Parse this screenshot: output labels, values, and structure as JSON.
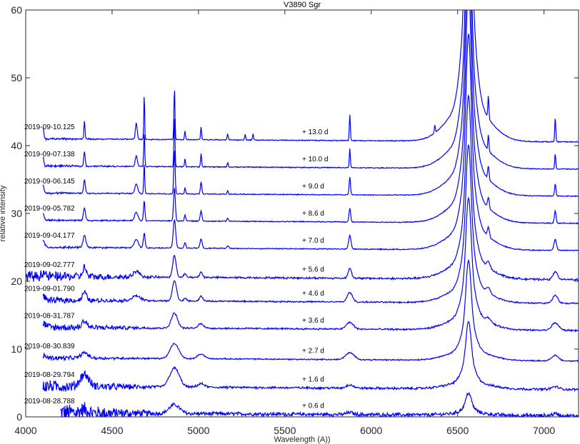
{
  "chart_data": {
    "type": "line",
    "title": "V3890 Sgr",
    "xlabel": "Wavelength (A))",
    "ylabel": "relative intensity",
    "xlim": [
      4000,
      7200
    ],
    "ylim": [
      0,
      60
    ],
    "xticks": [
      4000,
      4500,
      5000,
      5500,
      6000,
      6500,
      7000
    ],
    "yticks": [
      0,
      10,
      20,
      30,
      40,
      50,
      60
    ],
    "grid": false,
    "line_color": "#0000ff",
    "series": [
      {
        "name": "2019-08-28.788",
        "phase": "+ 0.6 d",
        "offset": 0.4,
        "x_start": 4200,
        "halpha_peak": 3.5,
        "noise": 1.2,
        "lines": [
          [
            4340,
            0.5,
            25
          ],
          [
            4861,
            1.3,
            30
          ],
          [
            5876,
            0.3,
            20
          ],
          [
            7065,
            0.3,
            20
          ]
        ]
      },
      {
        "name": "2019-08-29.794",
        "phase": "+ 1.6 d",
        "offset": 4.3,
        "x_start": 4100,
        "halpha_peak": 10.5,
        "noise": 0.7,
        "lines": [
          [
            4340,
            1.8,
            25
          ],
          [
            4861,
            2.8,
            28
          ],
          [
            5015,
            0.5,
            20
          ],
          [
            5876,
            0.5,
            20
          ],
          [
            7065,
            0.4,
            20
          ]
        ]
      },
      {
        "name": "2019-08-30.839",
        "phase": "+ 2.7 d",
        "offset": 8.5,
        "x_start": 4100,
        "halpha_peak": 15.5,
        "noise": 0.25,
        "lines": [
          [
            4101,
            0.3,
            15
          ],
          [
            4340,
            0.8,
            20
          ],
          [
            4861,
            2.2,
            25
          ],
          [
            5015,
            0.7,
            20
          ],
          [
            5876,
            1.0,
            25
          ],
          [
            7065,
            0.8,
            20
          ]
        ]
      },
      {
        "name": "2019-08-31.787",
        "phase": "+ 3.6 d",
        "offset": 13.0,
        "x_start": 4100,
        "halpha_peak": 20.5,
        "noise": 0.45,
        "lines": [
          [
            4101,
            0.5,
            15
          ],
          [
            4340,
            1.0,
            15
          ],
          [
            4861,
            2.2,
            18
          ],
          [
            5015,
            0.7,
            15
          ],
          [
            5876,
            1.0,
            20
          ],
          [
            6678,
            0.6,
            15
          ],
          [
            7065,
            1.1,
            20
          ]
        ]
      },
      {
        "name": "2019-09-01.790",
        "phase": "+ 4.6 d",
        "offset": 17.0,
        "x_start": 4100,
        "halpha_peak": 24.5,
        "noise": 0.35,
        "lines": [
          [
            4101,
            0.6,
            12
          ],
          [
            4340,
            1.2,
            12
          ],
          [
            4640,
            0.7,
            25
          ],
          [
            4861,
            3.0,
            12
          ],
          [
            4922,
            0.4,
            8
          ],
          [
            5015,
            0.7,
            10
          ],
          [
            5876,
            1.4,
            15
          ],
          [
            6678,
            0.8,
            12
          ],
          [
            7065,
            1.2,
            15
          ]
        ]
      },
      {
        "name": "2019-09-02.777",
        "phase": "+ 5.6 d",
        "offset": 20.5,
        "x_start": 4000,
        "halpha_peak": 28.5,
        "noise": 0.55,
        "lines": [
          [
            4101,
            0.6,
            10
          ],
          [
            4340,
            1.4,
            10
          ],
          [
            4640,
            0.8,
            20
          ],
          [
            4861,
            3.2,
            10
          ],
          [
            4922,
            0.5,
            7
          ],
          [
            5015,
            0.8,
            8
          ],
          [
            5876,
            1.5,
            10
          ],
          [
            6678,
            0.9,
            10
          ],
          [
            7065,
            1.2,
            12
          ]
        ]
      },
      {
        "name": "2019-09-04.177",
        "phase": "+ 7.0 d",
        "offset": 24.8,
        "x_start": 4100,
        "halpha_peak": 33.5,
        "noise": 0.12,
        "lines": [
          [
            4101,
            1.0,
            8
          ],
          [
            4340,
            1.8,
            8
          ],
          [
            4640,
            1.2,
            12
          ],
          [
            4686,
            2.2,
            5
          ],
          [
            4861,
            4.2,
            7
          ],
          [
            4922,
            0.8,
            5
          ],
          [
            5015,
            1.4,
            6
          ],
          [
            5169,
            0.4,
            5
          ],
          [
            5876,
            2.0,
            7
          ],
          [
            6678,
            1.4,
            6
          ],
          [
            7065,
            1.6,
            7
          ]
        ]
      },
      {
        "name": "2019-09-05.782",
        "phase": "+ 8.6 d",
        "offset": 28.8,
        "x_start": 4100,
        "halpha_peak": 37.0,
        "noise": 0.1,
        "lines": [
          [
            4101,
            1.0,
            6
          ],
          [
            4340,
            1.8,
            6
          ],
          [
            4640,
            1.2,
            10
          ],
          [
            4686,
            3.0,
            4
          ],
          [
            4861,
            5.0,
            5
          ],
          [
            4922,
            0.9,
            4
          ],
          [
            5015,
            1.5,
            5
          ],
          [
            5169,
            0.5,
            4
          ],
          [
            5876,
            2.0,
            5
          ],
          [
            6678,
            1.6,
            5
          ],
          [
            7065,
            1.8,
            5
          ]
        ]
      },
      {
        "name": "2019-09-06.145",
        "phase": "+ 9.0 d",
        "offset": 32.8,
        "x_start": 4100,
        "halpha_peak": 41.0,
        "noise": 0.1,
        "lines": [
          [
            4101,
            1.2,
            5
          ],
          [
            4340,
            2.0,
            5
          ],
          [
            4640,
            1.4,
            8
          ],
          [
            4686,
            4.5,
            3
          ],
          [
            4861,
            6.5,
            4
          ],
          [
            4922,
            1.0,
            3
          ],
          [
            5015,
            1.8,
            4
          ],
          [
            5169,
            0.6,
            3
          ],
          [
            5876,
            2.6,
            4
          ],
          [
            6678,
            2.0,
            4
          ],
          [
            7065,
            1.8,
            4
          ]
        ]
      },
      {
        "name": "2019-09-07.138",
        "phase": "+ 10.0 d",
        "offset": 36.8,
        "x_start": 4100,
        "halpha_peak": 45.0,
        "noise": 0.1,
        "lines": [
          [
            4101,
            1.3,
            4
          ],
          [
            4340,
            2.2,
            4
          ],
          [
            4640,
            1.6,
            6
          ],
          [
            4686,
            5.0,
            3
          ],
          [
            4861,
            7.5,
            3
          ],
          [
            4922,
            1.2,
            3
          ],
          [
            5015,
            2.0,
            3
          ],
          [
            5169,
            0.7,
            3
          ],
          [
            5876,
            2.8,
            3
          ],
          [
            6678,
            2.4,
            3
          ],
          [
            7065,
            2.2,
            3
          ]
        ]
      },
      {
        "name": "2019-09-10.125",
        "phase": "+ 13.0 d",
        "offset": 40.8,
        "x_start": 4100,
        "halpha_peak": 58.0,
        "noise": 0.1,
        "lines": [
          [
            4101,
            1.6,
            4
          ],
          [
            4340,
            2.7,
            3
          ],
          [
            4640,
            2.5,
            5
          ],
          [
            4686,
            6.8,
            2.5
          ],
          [
            4861,
            7.6,
            3
          ],
          [
            4922,
            1.2,
            3
          ],
          [
            5015,
            1.9,
            3
          ],
          [
            5169,
            0.9,
            3
          ],
          [
            5270,
            0.8,
            3
          ],
          [
            5316,
            0.9,
            3
          ],
          [
            5876,
            3.8,
            3
          ],
          [
            6368,
            1.2,
            3
          ],
          [
            6678,
            3.4,
            3
          ],
          [
            7065,
            3.6,
            3
          ]
        ]
      }
    ]
  }
}
